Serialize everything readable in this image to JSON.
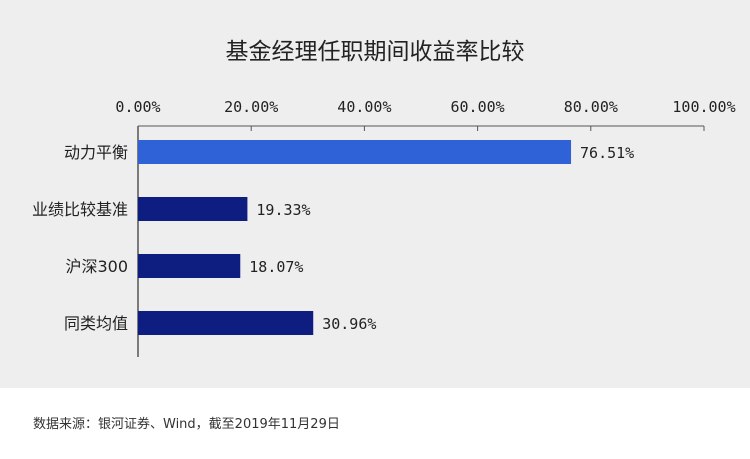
{
  "chart_data": {
    "type": "bar",
    "orientation": "horizontal",
    "title": "基金经理任职期间收益率比较",
    "categories": [
      "动力平衡",
      "业绩比较基准",
      "沪深300",
      "同类均值"
    ],
    "values": [
      76.51,
      19.33,
      18.07,
      30.96
    ],
    "value_labels": [
      "76.51%",
      "19.33%",
      "18.07%",
      "30.96%"
    ],
    "bar_colors": [
      "#2f62d6",
      "#0d1e80",
      "#0d1e80",
      "#0d1e80"
    ],
    "xlim": [
      0,
      100
    ],
    "x_ticks": [
      0,
      20,
      40,
      60,
      80,
      100
    ],
    "x_tick_labels": [
      "0.00%",
      "20.00%",
      "40.00%",
      "60.00%",
      "80.00%",
      "100.00%"
    ],
    "axis_position": "top",
    "grid": false,
    "legend": "none",
    "xlabel": "",
    "ylabel": ""
  },
  "footer": {
    "source": "数据来源：银河证券、Wind，截至2019年11月29日"
  }
}
